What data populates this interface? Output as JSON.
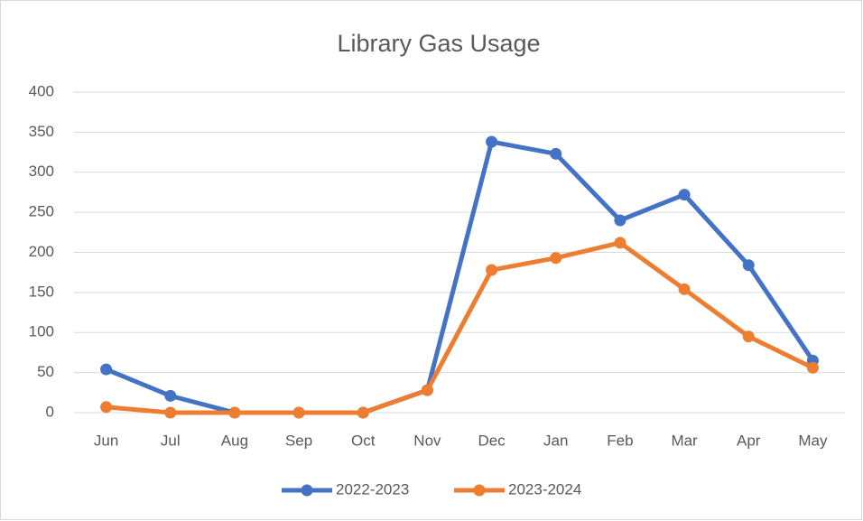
{
  "chart_data": {
    "type": "line",
    "title": "Library Gas Usage",
    "categories": [
      "Jun",
      "Jul",
      "Aug",
      "Sep",
      "Oct",
      "Nov",
      "Dec",
      "Jan",
      "Feb",
      "Mar",
      "Apr",
      "May"
    ],
    "series": [
      {
        "name": "2022-2023",
        "color": "#4472c4",
        "values": [
          54,
          21,
          0,
          0,
          0,
          28,
          338,
          323,
          240,
          272,
          184,
          65
        ]
      },
      {
        "name": "2023-2024",
        "color": "#ed7d31",
        "values": [
          7,
          0,
          0,
          0,
          0,
          28,
          178,
          193,
          212,
          154,
          95,
          56
        ]
      }
    ],
    "ylim": [
      0,
      400
    ],
    "yticks": [
      0,
      50,
      100,
      150,
      200,
      250,
      300,
      350,
      400
    ],
    "grid": true,
    "legend": "bottom"
  }
}
